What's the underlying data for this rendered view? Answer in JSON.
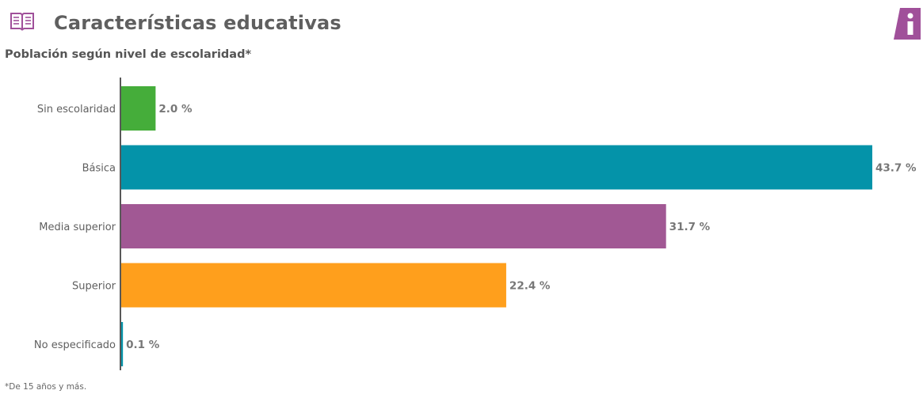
{
  "header": {
    "title": "Características educativas",
    "icons": {
      "section": "open-book-icon",
      "info": "info-icon"
    },
    "colors": {
      "accent": "#a0509a",
      "title": "#5f5f5f"
    }
  },
  "footnote": "*De 15 años y más.",
  "chart_data": {
    "type": "bar",
    "orientation": "horizontal",
    "title": "Población según nivel de escolaridad*",
    "categories": [
      "Sin escolaridad",
      "Básica",
      "Media superior",
      "Superior",
      "No especificado"
    ],
    "values": [
      2.0,
      43.7,
      31.7,
      22.4,
      0.1
    ],
    "value_labels": [
      "2.0 %",
      "43.7 %",
      "31.7 %",
      "22.4 %",
      "0.1 %"
    ],
    "colors": [
      "#45ad3a",
      "#0493a9",
      "#a15894",
      "#ff9f1c",
      "#0493a9"
    ],
    "xlim": [
      0,
      43.7
    ],
    "grid": false,
    "xlabel": "",
    "ylabel": ""
  }
}
